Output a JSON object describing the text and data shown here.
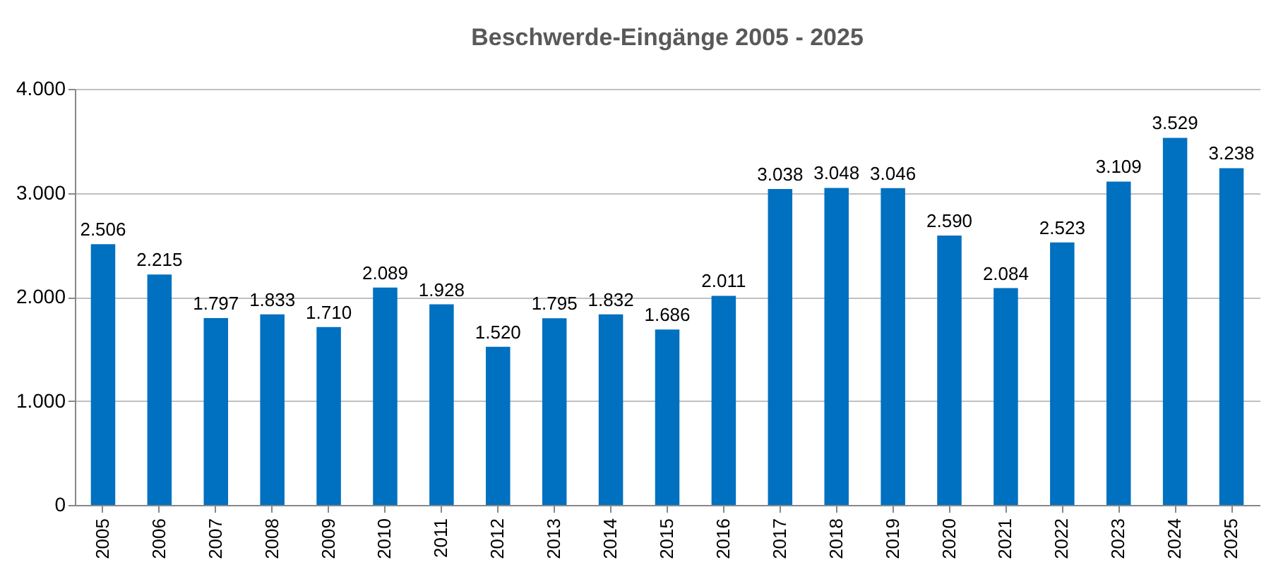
{
  "chart_data": {
    "type": "bar",
    "title": "Beschwerde-Eingänge 2005 - 2025",
    "categories": [
      "2005",
      "2006",
      "2007",
      "2008",
      "2009",
      "2010",
      "2011",
      "2012",
      "2013",
      "2014",
      "2015",
      "2016",
      "2017",
      "2018",
      "2019",
      "2020",
      "2021",
      "2022",
      "2023",
      "2024",
      "2025"
    ],
    "values": [
      2506,
      2215,
      1797,
      1833,
      1710,
      2089,
      1928,
      1520,
      1795,
      1832,
      1686,
      2011,
      3038,
      3048,
      3046,
      2590,
      2084,
      2523,
      3109,
      3529,
      3238
    ],
    "value_labels": [
      "2.506",
      "2.215",
      "1.797",
      "1.833",
      "1.710",
      "2.089",
      "1.928",
      "1.520",
      "1.795",
      "1.832",
      "1.686",
      "2.011",
      "3.038",
      "3.048",
      "3.046",
      "2.590",
      "2.084",
      "2.523",
      "3.109",
      "3.529",
      "3.238"
    ],
    "color": "#0070c0",
    "ylim": [
      0,
      4000
    ],
    "yticks": [
      {
        "value": 0,
        "label": "0"
      },
      {
        "value": 1000,
        "label": "1.000"
      },
      {
        "value": 2000,
        "label": "2.000"
      },
      {
        "value": 3000,
        "label": "3.000"
      },
      {
        "value": 4000,
        "label": "4.000"
      }
    ],
    "grid": "y"
  }
}
